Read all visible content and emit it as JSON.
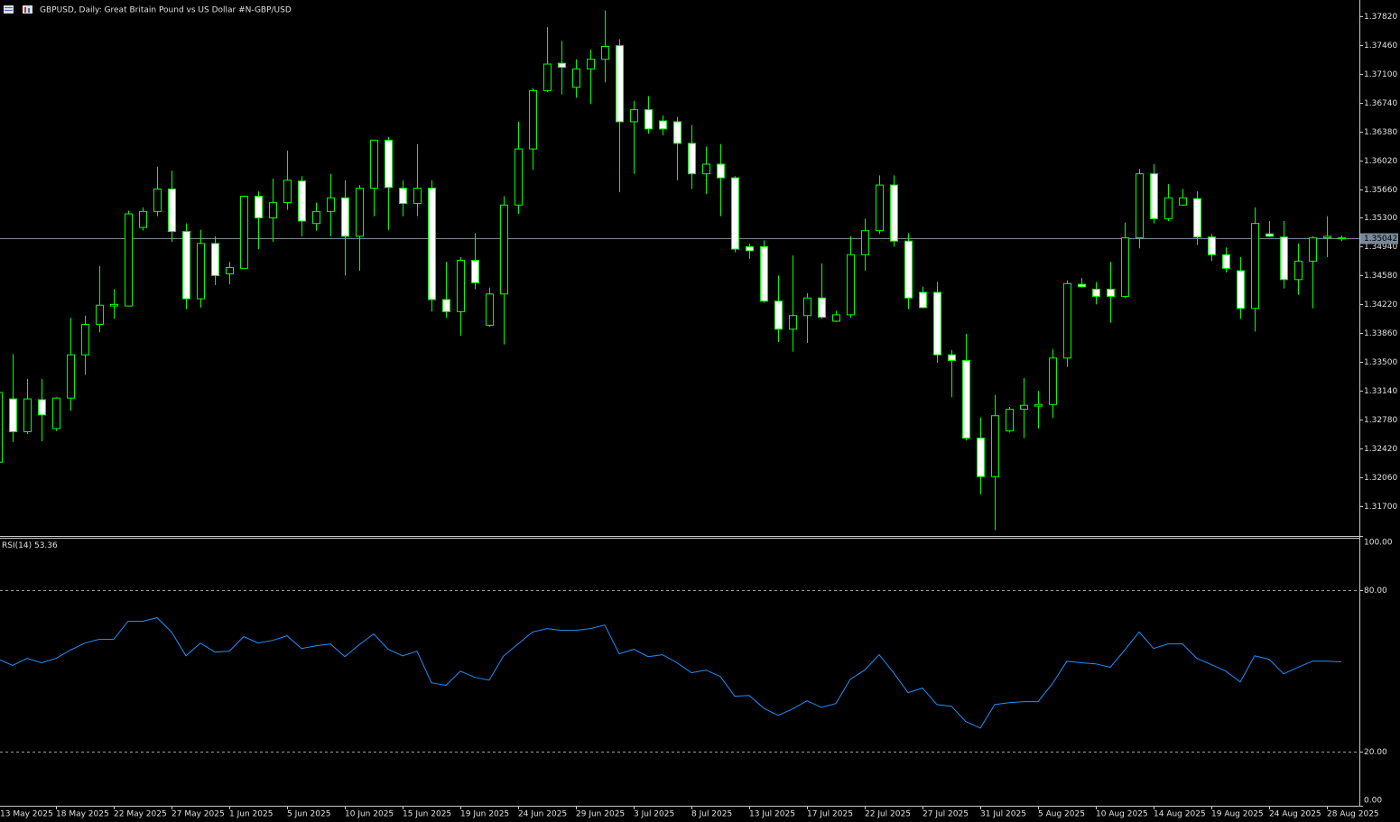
{
  "chart_data": [
    {
      "type": "candlestick",
      "title": "GBPUSD, Daily:  Great Britain Pound vs US Dollar #N-GBP/USD",
      "categories": [
        "13 May 2025",
        null,
        null,
        null,
        "18 May 2025",
        null,
        null,
        null,
        "22 May 2025",
        null,
        null,
        null,
        "27 May 2025",
        null,
        null,
        null,
        "1 Jun 2025",
        null,
        null,
        null,
        "5 Jun 2025",
        null,
        null,
        null,
        "10 Jun 2025",
        null,
        null,
        null,
        "15 Jun 2025",
        null,
        null,
        null,
        "19 Jun 2025",
        null,
        null,
        null,
        "24 Jun 2025",
        null,
        null,
        null,
        "29 Jun 2025",
        null,
        null,
        null,
        "3 Jul 2025",
        null,
        null,
        null,
        "8 Jul 2025",
        null,
        null,
        null,
        "13 Jul 2025",
        null,
        null,
        null,
        "17 Jul 2025",
        null,
        null,
        null,
        "22 Jul 2025",
        null,
        null,
        null,
        "27 Jul 2025",
        null,
        null,
        null,
        "31 Jul 2025",
        null,
        null,
        null,
        "5 Aug 2025",
        null,
        null,
        null,
        "10 Aug 2025",
        null,
        null,
        null,
        "14 Aug 2025",
        null,
        null,
        null,
        "19 Aug 2025",
        null,
        null,
        null,
        "24 Aug 2025",
        null,
        null,
        null,
        "28 Aug 2025",
        null
      ],
      "open": [
        1.3225,
        1.3304,
        1.3263,
        1.3303,
        1.3267,
        1.3305,
        1.3359,
        1.3397,
        1.342,
        1.342,
        1.3518,
        1.3538,
        1.3566,
        1.3513,
        1.3429,
        1.3498,
        1.346,
        1.3467,
        1.3557,
        1.353,
        1.3549,
        1.3576,
        1.3523,
        1.3538,
        1.3555,
        1.3507,
        1.3567,
        1.3627,
        1.3567,
        1.3548,
        1.3567,
        1.3428,
        1.3413,
        1.3477,
        1.3396,
        1.3435,
        1.3546,
        1.3616,
        1.3689,
        1.3723,
        1.3693,
        1.3716,
        1.3728,
        1.3745,
        1.365,
        1.3665,
        1.3651,
        1.365,
        1.3623,
        1.3585,
        1.3597,
        1.358,
        1.3494,
        1.3494,
        1.3426,
        1.3391,
        1.3408,
        1.343,
        1.3401,
        1.3409,
        1.3484,
        1.3514,
        1.3571,
        1.3501,
        1.3437,
        1.3437,
        1.3359,
        1.3352,
        1.3255,
        1.3207,
        1.3264,
        1.3291,
        1.3295,
        1.3297,
        1.3355,
        1.3447,
        1.3441,
        1.3441,
        1.3432,
        1.3505,
        1.3585,
        1.3529,
        1.3546,
        1.3554,
        1.3506,
        1.3484,
        1.3464,
        1.3417,
        1.351,
        1.3506,
        1.3453,
        1.3476,
        1.3505,
        1.3505
      ],
      "high": [
        1.3316,
        1.336,
        1.3329,
        1.3329,
        1.3306,
        1.3405,
        1.3408,
        1.347,
        1.3441,
        1.3539,
        1.3543,
        1.3594,
        1.3589,
        1.3523,
        1.3515,
        1.3507,
        1.3475,
        1.3558,
        1.3563,
        1.3579,
        1.3614,
        1.3582,
        1.3549,
        1.3585,
        1.3577,
        1.3571,
        1.3627,
        1.3631,
        1.3577,
        1.3622,
        1.3577,
        1.3475,
        1.3481,
        1.3511,
        1.3443,
        1.3557,
        1.365,
        1.3692,
        1.3768,
        1.3751,
        1.3728,
        1.374,
        1.3789,
        1.3753,
        1.3676,
        1.3682,
        1.3658,
        1.3656,
        1.3646,
        1.3619,
        1.3622,
        1.3582,
        1.3498,
        1.3502,
        1.3458,
        1.3483,
        1.3436,
        1.3473,
        1.3414,
        1.3507,
        1.3529,
        1.3583,
        1.3583,
        1.3511,
        1.3444,
        1.345,
        1.3365,
        1.3385,
        1.3281,
        1.3309,
        1.3294,
        1.333,
        1.3314,
        1.3366,
        1.3452,
        1.3455,
        1.345,
        1.3475,
        1.3524,
        1.3591,
        1.3597,
        1.3572,
        1.3566,
        1.3563,
        1.351,
        1.3493,
        1.3481,
        1.3543,
        1.3526,
        1.3526,
        1.3498,
        1.3507,
        1.3532,
        1.3508
      ],
      "low": [
        1.3178,
        1.325,
        1.326,
        1.3251,
        1.3264,
        1.3289,
        1.3334,
        1.3387,
        1.3404,
        1.342,
        1.3514,
        1.3532,
        1.35,
        1.3416,
        1.3418,
        1.3446,
        1.3447,
        1.3467,
        1.3491,
        1.35,
        1.354,
        1.3507,
        1.3514,
        1.3507,
        1.3458,
        1.3464,
        1.3532,
        1.3515,
        1.3532,
        1.3532,
        1.3413,
        1.3405,
        1.3383,
        1.3441,
        1.3394,
        1.3372,
        1.3535,
        1.359,
        1.3687,
        1.3684,
        1.368,
        1.3672,
        1.3699,
        1.3562,
        1.3585,
        1.3635,
        1.3633,
        1.3577,
        1.3566,
        1.356,
        1.3532,
        1.3487,
        1.3479,
        1.3424,
        1.3375,
        1.3363,
        1.3374,
        1.3404,
        1.34,
        1.3405,
        1.3464,
        1.351,
        1.3494,
        1.3416,
        1.3417,
        1.3349,
        1.3306,
        1.3252,
        1.3185,
        1.314,
        1.3262,
        1.3255,
        1.3267,
        1.328,
        1.3344,
        1.3443,
        1.3422,
        1.3399,
        1.343,
        1.3492,
        1.3523,
        1.3526,
        1.3545,
        1.3496,
        1.3476,
        1.3462,
        1.3404,
        1.3388,
        1.3506,
        1.3442,
        1.3434,
        1.3417,
        1.3481,
        1.3501
      ],
      "close": [
        1.3312,
        1.3263,
        1.3304,
        1.3284,
        1.3305,
        1.3359,
        1.3397,
        1.3421,
        1.3422,
        1.3535,
        1.3538,
        1.3566,
        1.3513,
        1.3429,
        1.3498,
        1.3458,
        1.3468,
        1.3557,
        1.353,
        1.3549,
        1.3577,
        1.3526,
        1.3538,
        1.3555,
        1.3507,
        1.3567,
        1.3627,
        1.3568,
        1.3548,
        1.3567,
        1.3428,
        1.3413,
        1.3477,
        1.3449,
        1.3435,
        1.3546,
        1.3616,
        1.3689,
        1.3722,
        1.3718,
        1.3716,
        1.3728,
        1.3744,
        1.365,
        1.3665,
        1.3641,
        1.3641,
        1.3623,
        1.3585,
        1.3597,
        1.358,
        1.3491,
        1.3489,
        1.3426,
        1.3391,
        1.3408,
        1.343,
        1.3406,
        1.3409,
        1.3484,
        1.3514,
        1.3571,
        1.3501,
        1.343,
        1.3418,
        1.3359,
        1.3352,
        1.3255,
        1.3207,
        1.3283,
        1.3291,
        1.3296,
        1.3297,
        1.3355,
        1.3448,
        1.3444,
        1.3432,
        1.3432,
        1.3505,
        1.3585,
        1.3529,
        1.3555,
        1.3555,
        1.3506,
        1.3484,
        1.3467,
        1.3417,
        1.3523,
        1.3507,
        1.3453,
        1.3476,
        1.3505,
        1.3507,
        1.35042
      ],
      "last_price": 1.35042,
      "color": "#00ff00",
      "up_fill": "#000000",
      "down_fill": "#ffffff",
      "last_price_color": "#778899",
      "ylim": [
        1.3134,
        1.3802
      ],
      "yticks": [
        {
          "value": 1.3782,
          "label": "1.37820"
        },
        {
          "value": 1.3746,
          "label": "1.37460"
        },
        {
          "value": 1.371,
          "label": "1.37100"
        },
        {
          "value": 1.3674,
          "label": "1.36740"
        },
        {
          "value": 1.3638,
          "label": "1.36380"
        },
        {
          "value": 1.3602,
          "label": "1.36020"
        },
        {
          "value": 1.3566,
          "label": "1.35660"
        },
        {
          "value": 1.353,
          "label": "1.35300"
        },
        {
          "value": 1.3494,
          "label": "1.34940"
        },
        {
          "value": 1.3458,
          "label": "1.34580"
        },
        {
          "value": 1.3422,
          "label": "1.34220"
        },
        {
          "value": 1.3386,
          "label": "1.33860"
        },
        {
          "value": 1.335,
          "label": "1.33500"
        },
        {
          "value": 1.3314,
          "label": "1.33140"
        },
        {
          "value": 1.3278,
          "label": "1.32780"
        },
        {
          "value": 1.3242,
          "label": "1.32420"
        },
        {
          "value": 1.3206,
          "label": "1.32060"
        },
        {
          "value": 1.317,
          "label": "1.31700"
        }
      ]
    },
    {
      "type": "line",
      "title": "RSI(14)",
      "series": [
        {
          "name": "RSI(14)",
          "color": "#1e90ff",
          "values": [
            54.3,
            52.0,
            54.6,
            53.0,
            54.6,
            57.7,
            60.3,
            61.7,
            61.7,
            68.4,
            68.4,
            69.7,
            64.4,
            55.6,
            60.3,
            57.0,
            57.3,
            62.7,
            60.3,
            61.3,
            63.0,
            58.3,
            59.3,
            60.0,
            55.3,
            59.7,
            63.7,
            58.0,
            55.6,
            57.3,
            45.6,
            44.6,
            49.9,
            47.6,
            46.6,
            55.6,
            60.0,
            64.4,
            65.7,
            65.0,
            65.0,
            65.7,
            67.0,
            56.3,
            58.0,
            55.3,
            56.0,
            53.0,
            49.3,
            50.3,
            47.9,
            40.6,
            40.9,
            36.2,
            33.5,
            35.9,
            38.9,
            36.5,
            37.9,
            46.9,
            50.3,
            56.0,
            49.3,
            41.9,
            43.6,
            37.5,
            36.9,
            31.2,
            28.8,
            37.5,
            38.2,
            38.6,
            38.6,
            45.3,
            53.6,
            53.0,
            52.6,
            51.3,
            57.7,
            64.4,
            58.3,
            60.0,
            60.0,
            54.6,
            52.3,
            49.9,
            45.9,
            55.6,
            54.3,
            48.9,
            51.3,
            53.6,
            53.6,
            53.36
          ]
        }
      ],
      "levels": [
        80,
        20
      ],
      "ylim": [
        0,
        100
      ],
      "yticks": [
        {
          "value": 100,
          "label": "100.00"
        },
        {
          "value": 80,
          "label": "80.00"
        },
        {
          "value": 20,
          "label": "20.00"
        },
        {
          "value": 0,
          "label": "0.00"
        }
      ]
    }
  ]
}
